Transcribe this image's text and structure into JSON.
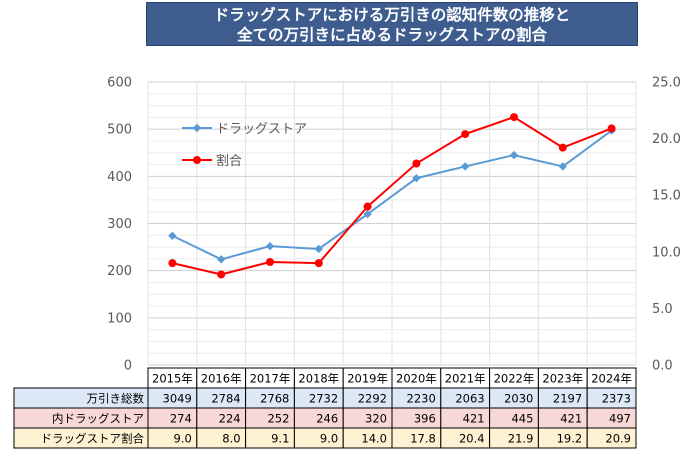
{
  "title": {
    "line1": "ドラッグストアにおける万引きの認知件数の推移と",
    "line2": "全ての万引きに占めるドラッグストアの割合"
  },
  "chart_data": {
    "type": "line",
    "categories": [
      "2015年",
      "2016年",
      "2017年",
      "2018年",
      "2019年",
      "2020年",
      "2021年",
      "2022年",
      "2023年",
      "2024年"
    ],
    "series": [
      {
        "name": "ドラッグストア",
        "axis": "left",
        "color": "#5b9bd5",
        "marker": "diamond",
        "values": [
          274,
          224,
          252,
          246,
          320,
          396,
          421,
          445,
          421,
          497
        ]
      },
      {
        "name": "割合",
        "axis": "right",
        "color": "#ff0000",
        "marker": "circle",
        "values": [
          9.0,
          8.0,
          9.1,
          9.0,
          14.0,
          17.8,
          20.4,
          21.9,
          19.2,
          20.9
        ]
      }
    ],
    "y_left": {
      "min": 0,
      "max": 600,
      "ticks": [
        "0",
        "100",
        "200",
        "300",
        "400",
        "500",
        "600"
      ]
    },
    "y_right": {
      "min": 0,
      "max": 25,
      "ticks": [
        "0.0",
        "5.0",
        "10.0",
        "15.0",
        "20.0",
        "25.0"
      ]
    },
    "grid": true,
    "legend_position": "top-left"
  },
  "table": {
    "rows": [
      {
        "label": "万引き総数",
        "bg": "#dde8f6",
        "cells": [
          "3049",
          "2784",
          "2768",
          "2732",
          "2292",
          "2230",
          "2063",
          "2030",
          "2197",
          "2373"
        ]
      },
      {
        "label": "内ドラッグストア",
        "bg": "#f8d7d7",
        "cells": [
          "274",
          "224",
          "252",
          "246",
          "320",
          "396",
          "421",
          "445",
          "421",
          "497"
        ]
      },
      {
        "label": "ドラッグストア割合",
        "bg": "#fdf2d2",
        "cells": [
          "9.0",
          "8.0",
          "9.1",
          "9.0",
          "14.0",
          "17.8",
          "20.4",
          "21.9",
          "19.2",
          "20.9"
        ]
      }
    ]
  }
}
